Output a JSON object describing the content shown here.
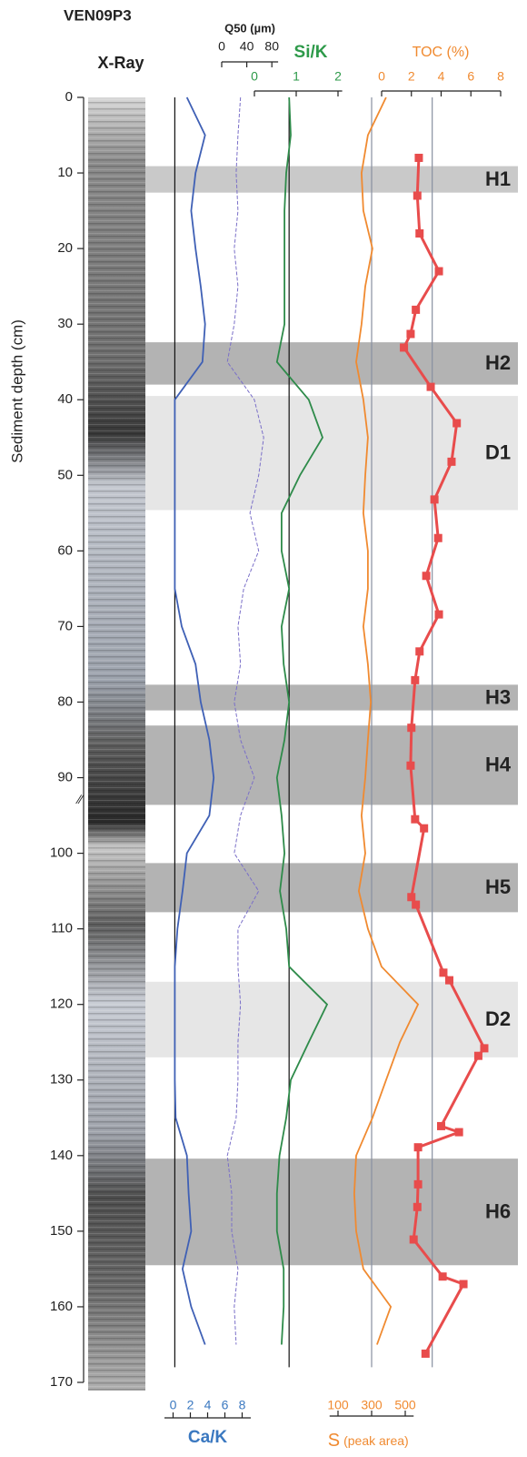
{
  "chart_data": {
    "type": "line",
    "title": "VEN09P3",
    "xray_label": "X-Ray",
    "depth_axis": {
      "label": "Sediment depth (cm)",
      "ylim": [
        0,
        170
      ],
      "yticks": [
        0,
        10,
        20,
        30,
        40,
        50,
        60,
        70,
        80,
        90,
        100,
        110,
        120,
        130,
        140,
        150,
        160,
        170
      ]
    },
    "zones": [
      {
        "label": "H1",
        "top": 9.1,
        "bottom": 12.6,
        "color": "#c9c9c9"
      },
      {
        "label": "H2",
        "top": 32.4,
        "bottom": 38.0,
        "color": "#b3b3b3"
      },
      {
        "label": "D1",
        "top": 39.5,
        "bottom": 54.6,
        "color": "#e6e6e6"
      },
      {
        "label": "H3",
        "top": 77.7,
        "bottom": 81.1,
        "color": "#b3b3b3"
      },
      {
        "label": "H4",
        "top": 83.1,
        "bottom": 93.6,
        "color": "#b3b3b3"
      },
      {
        "label": "H5",
        "top": 101.3,
        "bottom": 107.8,
        "color": "#b3b3b3"
      },
      {
        "label": "D2",
        "top": 117.0,
        "bottom": 127.0,
        "color": "#e6e6e6"
      },
      {
        "label": "H6",
        "top": 140.4,
        "bottom": 154.5,
        "color": "#b3b3b3"
      }
    ],
    "depths": [
      0,
      5,
      10,
      15,
      20,
      25,
      30,
      35,
      40,
      45,
      50,
      55,
      60,
      65,
      70,
      75,
      80,
      85,
      90,
      95,
      100,
      105,
      110,
      115,
      120,
      125,
      130,
      135,
      140,
      145,
      150,
      155,
      160,
      165
    ],
    "tracks": [
      {
        "name": "Ca/K",
        "color": "#3f60b5",
        "label_color": "#3a78c0",
        "dash": false,
        "axis": "bottom",
        "xlim": [
          -1,
          9
        ],
        "xticks": [
          0,
          2,
          4,
          6,
          8
        ],
        "reference": 0.2,
        "values": [
          1.6,
          3.7,
          2.6,
          2.1,
          2.6,
          3.2,
          3.7,
          3.4,
          0.2,
          0.2,
          0.2,
          0.2,
          0.2,
          0.2,
          1.0,
          2.6,
          3.2,
          4.2,
          4.7,
          4.2,
          1.6,
          1.1,
          0.5,
          0.2,
          0.2,
          0.2,
          0.2,
          0.3,
          1.6,
          1.8,
          2.1,
          1.1,
          2.1,
          3.7
        ]
      },
      {
        "name": "Q50 (µm)",
        "color": "#7a6fc8",
        "label_color": "#222222",
        "dash": true,
        "axis": "top1",
        "xlim": [
          0,
          90
        ],
        "xticks": [
          0,
          40,
          80
        ],
        "values": [
          30,
          26,
          23,
          26,
          20,
          26,
          20,
          9,
          52,
          67,
          59,
          45,
          59,
          35,
          26,
          30,
          20,
          30,
          52,
          30,
          20,
          59,
          26,
          26,
          30,
          26,
          26,
          23,
          9,
          16,
          16,
          26,
          20,
          23
        ]
      },
      {
        "name": "Si/K",
        "color": "#2e8b4a",
        "label_color": "#2e9a4a",
        "dash": false,
        "axis": "top2",
        "xlim": [
          0,
          2.1
        ],
        "xticks": [
          0,
          1,
          2
        ],
        "reference": 0.83,
        "values": [
          0.83,
          0.87,
          0.76,
          0.72,
          0.72,
          0.72,
          0.72,
          0.54,
          1.3,
          1.63,
          1.09,
          0.65,
          0.65,
          0.83,
          0.65,
          0.7,
          0.83,
          0.72,
          0.54,
          0.65,
          0.72,
          0.61,
          0.76,
          0.83,
          1.74,
          1.3,
          0.87,
          0.76,
          0.6,
          0.54,
          0.54,
          0.7,
          0.7,
          0.65
        ]
      },
      {
        "name": "S",
        "unit": "(peak area)",
        "color": "#f08a30",
        "label_color": "#f08a30",
        "dash": false,
        "axis": "bottom",
        "xlim": [
          50,
          550
        ],
        "xticks": [
          100,
          300,
          500
        ],
        "reference": 300,
        "values": [
          386,
          278,
          240,
          251,
          305,
          262,
          240,
          208,
          251,
          278,
          262,
          251,
          278,
          278,
          251,
          278,
          295,
          278,
          262,
          240,
          262,
          224,
          278,
          359,
          576,
          468,
          386,
          305,
          208,
          197,
          208,
          251,
          414,
          332
        ]
      }
    ],
    "toc": {
      "name": "TOC (%)",
      "color": "#e84c4c",
      "label_color": "#f08a30",
      "xlim": [
        0,
        8
      ],
      "xticks": [
        0,
        2,
        4,
        6,
        8
      ],
      "reference": 3.4,
      "depths": [
        8.0,
        13.0,
        18.0,
        23.0,
        28.1,
        31.3,
        33.1,
        38.3,
        43.1,
        48.2,
        53.2,
        58.3,
        63.3,
        68.4,
        73.3,
        77.1,
        83.4,
        88.4,
        95.5,
        96.7,
        105.8,
        106.8,
        115.8,
        116.8,
        125.8,
        126.8,
        136.1,
        136.9,
        138.9,
        143.8,
        146.8,
        151.1,
        156.0,
        157.0,
        166.2
      ],
      "values": [
        2.5,
        2.4,
        2.55,
        3.85,
        2.3,
        1.95,
        1.5,
        3.3,
        5.05,
        4.7,
        3.55,
        3.8,
        3.0,
        3.85,
        2.55,
        2.25,
        2.0,
        1.95,
        2.25,
        2.85,
        2.0,
        2.3,
        4.15,
        4.55,
        6.9,
        6.5,
        4.0,
        5.2,
        2.45,
        2.45,
        2.4,
        2.15,
        4.1,
        5.5,
        2.95
      ]
    }
  }
}
